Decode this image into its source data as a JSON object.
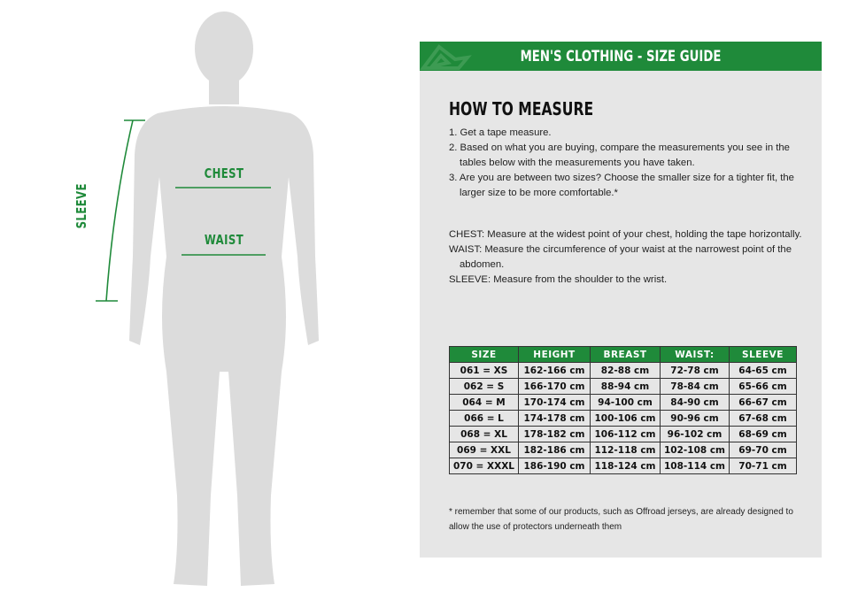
{
  "figure": {
    "labels": {
      "chest": "CHEST",
      "waist": "WAIST",
      "sleeve": "SLEEVE"
    }
  },
  "colors": {
    "accent": "#1f8a3a",
    "panel": "#e6e6e6",
    "silhouette": "#dcdcdc"
  },
  "header": {
    "title": "MEN'S CLOTHING - SIZE GUIDE",
    "logo_icon": "brand-logo"
  },
  "how_to": {
    "title": "HOW TO MEASURE",
    "steps": [
      "1. Get a tape measure.",
      "2. Based on what you are buying, compare the measurements you see in the tables below with the measurements you have taken.",
      "3. Are you are between two sizes? Choose the smaller size for a tighter fit, the larger size to be more comfortable.*"
    ],
    "definitions": [
      "CHEST: Measure at the widest point of your chest, holding the tape horizontally.",
      "WAIST: Measure the circumference of your waist at the narrowest point of the abdomen.",
      "SLEEVE: Measure from the shoulder to the wrist."
    ]
  },
  "table": {
    "headers": [
      "SIZE",
      "HEIGHT",
      "BREAST",
      "WAIST:",
      "SLEEVE"
    ],
    "rows": [
      [
        "061 = XS",
        "162-166 cm",
        "82-88 cm",
        "72-78 cm",
        "64-65 cm"
      ],
      [
        "062 = S",
        "166-170 cm",
        "88-94 cm",
        "78-84 cm",
        "65-66 cm"
      ],
      [
        "064 = M",
        "170-174 cm",
        "94-100 cm",
        "84-90 cm",
        "66-67 cm"
      ],
      [
        "066 = L",
        "174-178 cm",
        "100-106 cm",
        "90-96 cm",
        "67-68 cm"
      ],
      [
        "068 = XL",
        "178-182 cm",
        "106-112 cm",
        "96-102 cm",
        "68-69 cm"
      ],
      [
        "069 = XXL",
        "182-186 cm",
        "112-118 cm",
        "102-108 cm",
        "69-70 cm"
      ],
      [
        "070 = XXXL",
        "186-190 cm",
        "118-124 cm",
        "108-114 cm",
        "70-71 cm"
      ]
    ]
  },
  "note": "* remember that some of our products, such as Offroad jerseys, are already designed to allow the use of protectors underneath them"
}
